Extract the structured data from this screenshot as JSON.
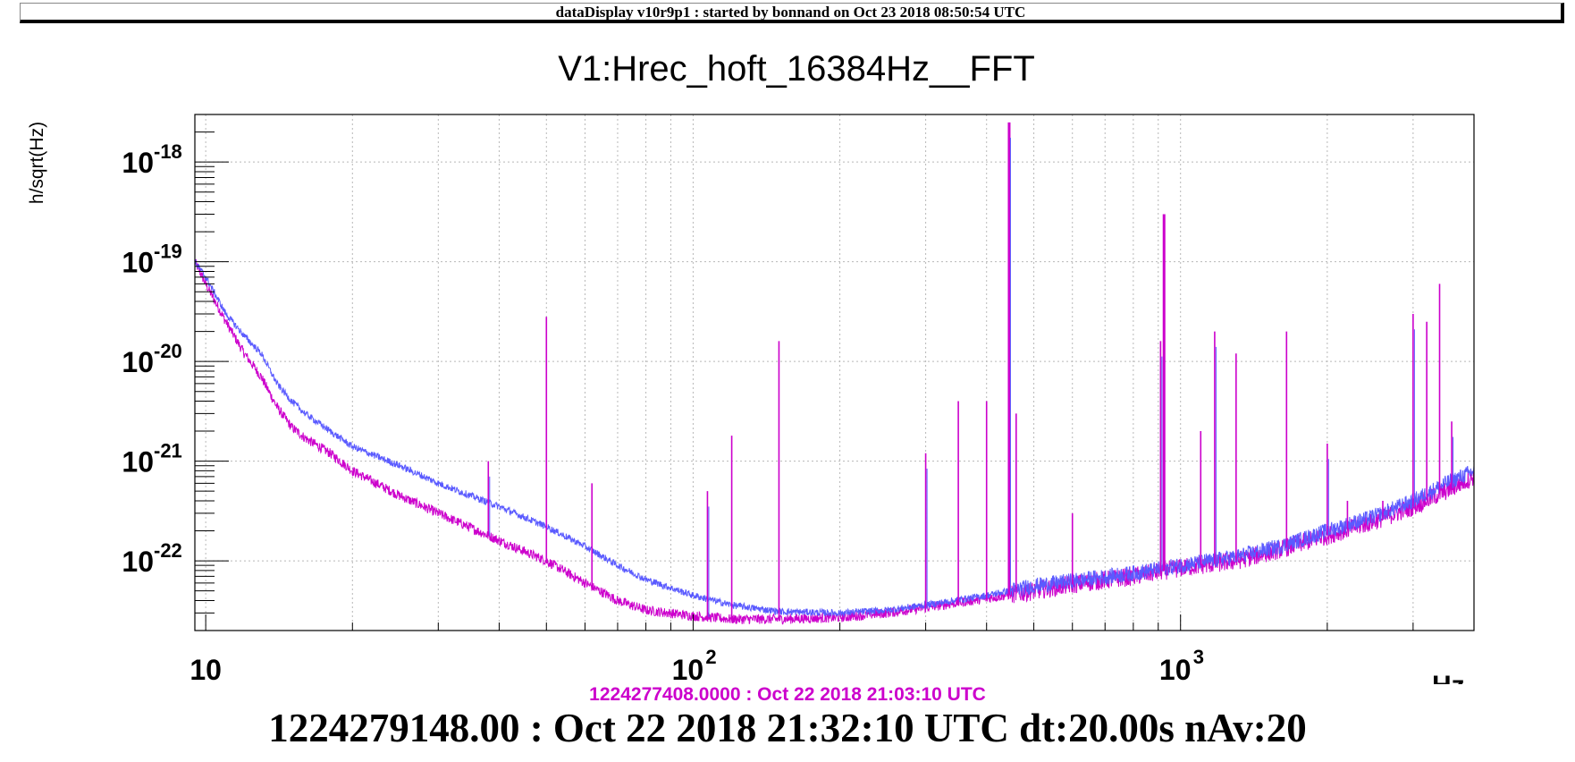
{
  "header": {
    "title": "dataDisplay v10r9p1 : started by bonnand on Oct 23 2018 08:50:54 UTC"
  },
  "footer": {
    "reference_timestamp": "1224277408.0000 : Oct 22 2018 21:03:10 UTC",
    "main_timestamp": "1224279148.00 : Oct 22 2018 21:32:10 UTC dt:20.00s nAv:20"
  },
  "colors": {
    "current_trace": "#5a5aff",
    "reference_trace": "#cc00cc",
    "grid": "#b8b8b8"
  },
  "chart_data": {
    "type": "line",
    "title": "V1:Hrec_hoft_16384Hz__FFT",
    "xlabel": "Hz",
    "ylabel": "h/sqrt(Hz)",
    "x_scale": "log",
    "y_scale": "log",
    "xlim": [
      9.5,
      4000
    ],
    "ylim": [
      2e-23,
      3e-18
    ],
    "x_ticks": [
      {
        "value": 10,
        "label": "10"
      },
      {
        "value": 100,
        "label": "10",
        "exp": "2"
      },
      {
        "value": 1000,
        "label": "10",
        "exp": "3"
      }
    ],
    "y_ticks": [
      {
        "value": 1e-22,
        "label": "10",
        "exp": "-22"
      },
      {
        "value": 1e-21,
        "label": "10",
        "exp": "-21"
      },
      {
        "value": 1e-20,
        "label": "10",
        "exp": "-20"
      },
      {
        "value": 1e-19,
        "label": "10",
        "exp": "-19"
      },
      {
        "value": 1e-18,
        "label": "10",
        "exp": "-18"
      }
    ],
    "grid": true,
    "series": [
      {
        "key": "current",
        "color": "#5a5aff",
        "x": [
          9.5,
          10,
          11,
          12,
          13,
          14,
          15,
          16,
          18,
          20,
          25,
          30,
          40,
          50,
          60,
          70,
          80,
          100,
          120,
          150,
          200,
          250,
          300,
          400,
          500,
          600,
          800,
          1000,
          1300,
          1600,
          2000,
          2500,
          3000,
          3500,
          4000
        ],
        "y": [
          1e-19,
          7e-20,
          3e-20,
          1.8e-20,
          1.2e-20,
          6e-21,
          4e-21,
          3e-21,
          2e-21,
          1.4e-21,
          9e-22,
          6e-22,
          3.5e-22,
          2.2e-22,
          1.4e-22,
          9e-23,
          6.5e-23,
          4.5e-23,
          3.6e-23,
          3.1e-23,
          3e-23,
          3.2e-23,
          3.6e-23,
          4.5e-23,
          5.6e-23,
          6.3e-23,
          7.5e-23,
          9e-23,
          1.1e-22,
          1.4e-22,
          2e-22,
          2.8e-22,
          4e-22,
          6e-22,
          8e-22
        ]
      },
      {
        "key": "reference",
        "color": "#cc00cc",
        "x": [
          9.5,
          10,
          11,
          12,
          13,
          14,
          15,
          16,
          18,
          20,
          25,
          30,
          40,
          50,
          60,
          70,
          80,
          100,
          120,
          150,
          200,
          250,
          300,
          400,
          500,
          600,
          800,
          1000,
          1300,
          1600,
          2000,
          2500,
          3000,
          3500,
          4000
        ],
        "y": [
          1e-19,
          6e-20,
          2.5e-20,
          1.2e-20,
          7e-21,
          3.5e-21,
          2.2e-21,
          1.7e-21,
          1.2e-21,
          8e-22,
          4.5e-22,
          3e-22,
          1.6e-22,
          1e-22,
          6e-23,
          4e-23,
          3.2e-23,
          2.8e-23,
          2.6e-23,
          2.6e-23,
          2.7e-23,
          3e-23,
          3.4e-23,
          4.2e-23,
          5e-23,
          5.8e-23,
          7e-23,
          8.5e-23,
          1e-22,
          1.3e-22,
          1.8e-22,
          2.5e-22,
          3.5e-22,
          5e-22,
          7e-22
        ]
      }
    ],
    "peaks": [
      {
        "x": 38,
        "y": 1e-21
      },
      {
        "x": 50,
        "y": 2.8e-20
      },
      {
        "x": 62,
        "y": 6e-22
      },
      {
        "x": 107,
        "y": 5e-22
      },
      {
        "x": 120,
        "y": 1.8e-21
      },
      {
        "x": 150,
        "y": 1.6e-20
      },
      {
        "x": 300,
        "y": 1.2e-21
      },
      {
        "x": 350,
        "y": 4e-21
      },
      {
        "x": 400,
        "y": 4e-21
      },
      {
        "x": 445,
        "y": 2.5e-18
      },
      {
        "x": 460,
        "y": 3e-21
      },
      {
        "x": 600,
        "y": 3e-22
      },
      {
        "x": 910,
        "y": 1.6e-20
      },
      {
        "x": 925,
        "y": 3e-19
      },
      {
        "x": 1100,
        "y": 2e-21
      },
      {
        "x": 1175,
        "y": 2e-20
      },
      {
        "x": 1300,
        "y": 1.2e-20
      },
      {
        "x": 1650,
        "y": 2e-20
      },
      {
        "x": 2000,
        "y": 1.5e-21
      },
      {
        "x": 2200,
        "y": 4e-22
      },
      {
        "x": 2600,
        "y": 4e-22
      },
      {
        "x": 3000,
        "y": 3e-20
      },
      {
        "x": 3200,
        "y": 2.5e-20
      },
      {
        "x": 3400,
        "y": 6e-20
      },
      {
        "x": 3600,
        "y": 2.5e-21
      }
    ]
  }
}
